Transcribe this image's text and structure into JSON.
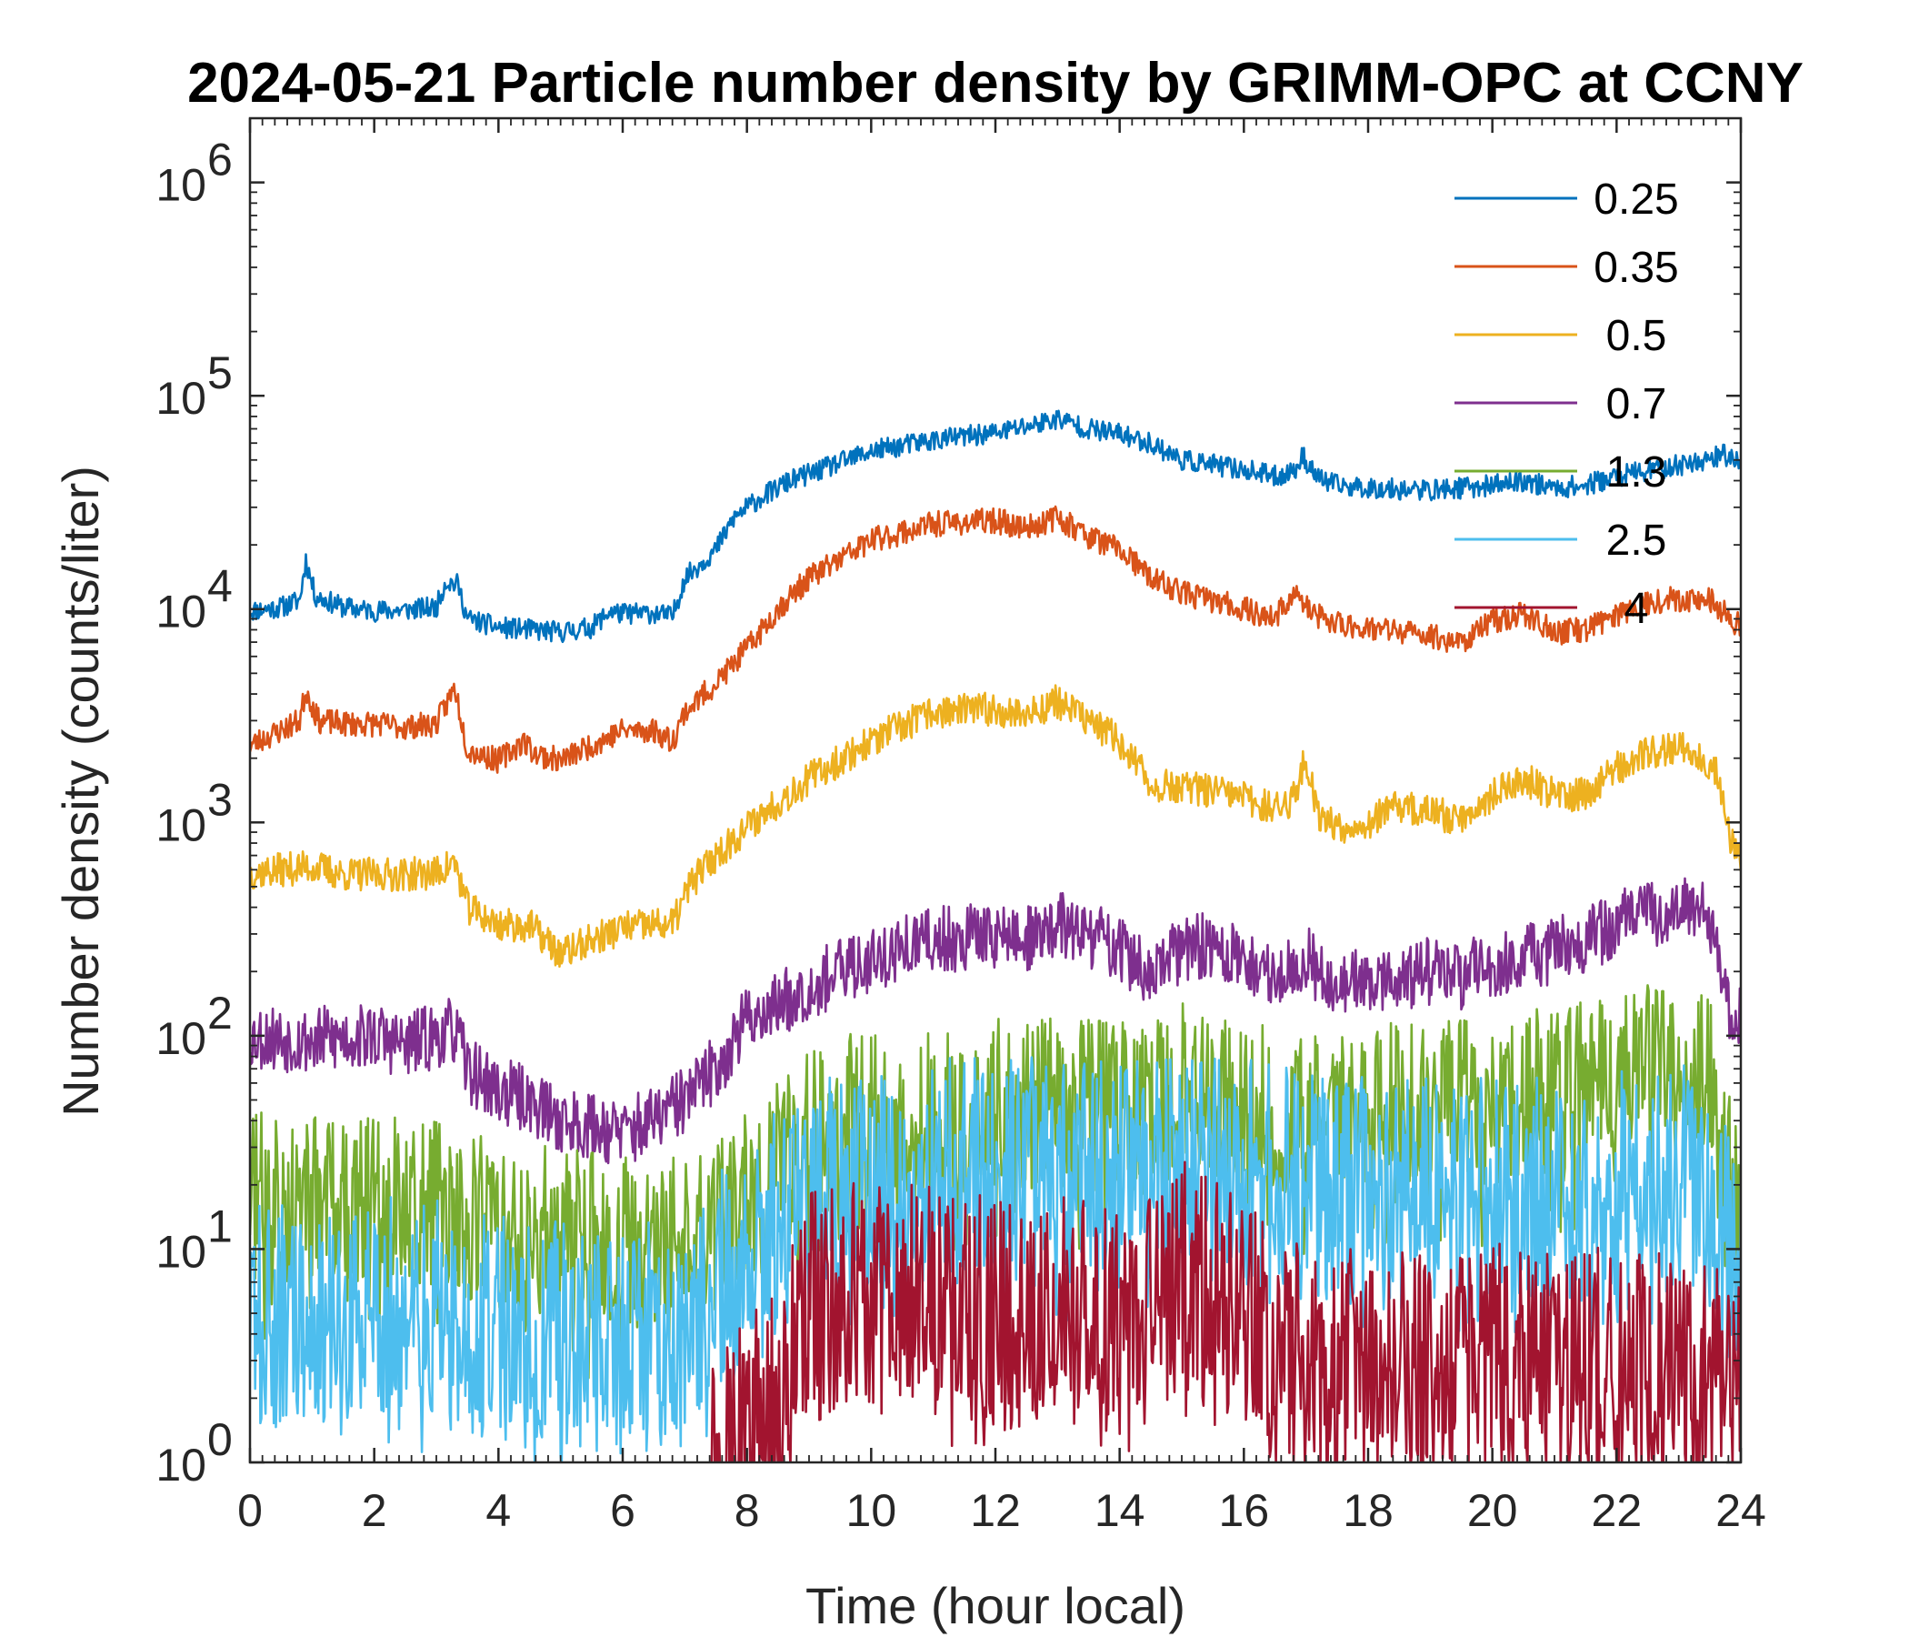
{
  "chart_data": {
    "type": "line",
    "title": "2024-05-21 Particle number density by GRIMM-OPC at CCNY",
    "xlabel": "Time (hour local)",
    "ylabel": "Number density (counts/liter)",
    "xlim": [
      0,
      24
    ],
    "ylim": [
      1,
      2000000
    ],
    "yscale": "log",
    "xticks": [
      0,
      2,
      4,
      6,
      8,
      10,
      12,
      14,
      16,
      18,
      20,
      22,
      24
    ],
    "yticks": [
      {
        "value": 1,
        "base": "10",
        "exp": "0"
      },
      {
        "value": 10,
        "base": "10",
        "exp": "1"
      },
      {
        "value": 100,
        "base": "10",
        "exp": "2"
      },
      {
        "value": 1000,
        "base": "10",
        "exp": "3"
      },
      {
        "value": 10000,
        "base": "10",
        "exp": "4"
      },
      {
        "value": 100000,
        "base": "10",
        "exp": "5"
      },
      {
        "value": 1000000,
        "base": "10",
        "exp": "6"
      }
    ],
    "grid": false,
    "legend_position": "top-right",
    "series": [
      {
        "name": "0.25",
        "color": "#0072BD",
        "noise": 0.05,
        "seed": 11,
        "points": [
          [
            0,
            9800
          ],
          [
            0.5,
            10200
          ],
          [
            0.8,
            11000
          ],
          [
            0.9,
            17000
          ],
          [
            1.05,
            11500
          ],
          [
            1.5,
            10200
          ],
          [
            2,
            9800
          ],
          [
            2.5,
            9900
          ],
          [
            3,
            10200
          ],
          [
            3.15,
            13500
          ],
          [
            3.35,
            13000
          ],
          [
            3.5,
            9000
          ],
          [
            4,
            8200
          ],
          [
            4.5,
            8000
          ],
          [
            5,
            7800
          ],
          [
            5.5,
            8200
          ],
          [
            5.8,
            9800
          ],
          [
            6,
            9500
          ],
          [
            6.5,
            9600
          ],
          [
            6.8,
            9200
          ],
          [
            7,
            14000
          ],
          [
            7.5,
            19000
          ],
          [
            7.8,
            27000
          ],
          [
            8.2,
            33000
          ],
          [
            8.7,
            40000
          ],
          [
            9.2,
            45000
          ],
          [
            10,
            55000
          ],
          [
            11,
            62000
          ],
          [
            12,
            67000
          ],
          [
            12.5,
            72000
          ],
          [
            13,
            78000
          ],
          [
            13.5,
            70000
          ],
          [
            14,
            66000
          ],
          [
            14.5,
            60000
          ],
          [
            15,
            50000
          ],
          [
            16,
            45000
          ],
          [
            16.5,
            42000
          ],
          [
            16.8,
            44000
          ],
          [
            16.95,
            52000
          ],
          [
            17.2,
            41000
          ],
          [
            17.5,
            38000
          ],
          [
            18,
            37000
          ],
          [
            19,
            36000
          ],
          [
            20,
            38000
          ],
          [
            20.5,
            40000
          ],
          [
            21,
            37000
          ],
          [
            21.5,
            38000
          ],
          [
            22,
            42000
          ],
          [
            22.8,
            46000
          ],
          [
            23.4,
            50000
          ],
          [
            23.7,
            53000
          ],
          [
            24,
            50000
          ]
        ]
      },
      {
        "name": "0.35",
        "color": "#D95319",
        "noise": 0.06,
        "seed": 23,
        "points": [
          [
            0,
            2300
          ],
          [
            0.5,
            2700
          ],
          [
            0.8,
            3000
          ],
          [
            0.9,
            4200
          ],
          [
            1.1,
            3000
          ],
          [
            1.5,
            2900
          ],
          [
            2,
            2900
          ],
          [
            2.5,
            2800
          ],
          [
            3,
            2900
          ],
          [
            3.3,
            4300
          ],
          [
            3.5,
            2200
          ],
          [
            4,
            1950
          ],
          [
            4.4,
            2400
          ],
          [
            4.6,
            2100
          ],
          [
            5,
            1950
          ],
          [
            5.5,
            2300
          ],
          [
            6,
            2700
          ],
          [
            6.5,
            2700
          ],
          [
            6.8,
            2400
          ],
          [
            7,
            3300
          ],
          [
            7.5,
            4500
          ],
          [
            8,
            6500
          ],
          [
            8.5,
            10000
          ],
          [
            9,
            14000
          ],
          [
            10,
            21000
          ],
          [
            11,
            25000
          ],
          [
            12,
            26000
          ],
          [
            12.5,
            24000
          ],
          [
            13,
            27000
          ],
          [
            13.5,
            22000
          ],
          [
            14,
            19000
          ],
          [
            14.5,
            14000
          ],
          [
            15,
            12000
          ],
          [
            16,
            10000
          ],
          [
            16.5,
            9000
          ],
          [
            16.8,
            12000
          ],
          [
            17.1,
            9500
          ],
          [
            17.5,
            8500
          ],
          [
            18,
            8200
          ],
          [
            19,
            7500
          ],
          [
            19.5,
            7000
          ],
          [
            20,
            8800
          ],
          [
            20.5,
            9500
          ],
          [
            21,
            7800
          ],
          [
            21.5,
            8000
          ],
          [
            22,
            9500
          ],
          [
            22.5,
            10800
          ],
          [
            23,
            11200
          ],
          [
            23.5,
            11000
          ],
          [
            24,
            8200
          ]
        ]
      },
      {
        "name": "0.5",
        "color": "#EDB120",
        "noise": 0.08,
        "seed": 37,
        "points": [
          [
            0,
            580
          ],
          [
            0.5,
            600
          ],
          [
            1,
            620
          ],
          [
            1.5,
            570
          ],
          [
            2,
            570
          ],
          [
            2.5,
            570
          ],
          [
            3,
            580
          ],
          [
            3.3,
            650
          ],
          [
            3.5,
            400
          ],
          [
            4,
            330
          ],
          [
            4.5,
            330
          ],
          [
            5,
            240
          ],
          [
            5.5,
            280
          ],
          [
            6,
            320
          ],
          [
            6.5,
            330
          ],
          [
            6.8,
            330
          ],
          [
            7.1,
            520
          ],
          [
            7.5,
            700
          ],
          [
            8,
            950
          ],
          [
            8.5,
            1250
          ],
          [
            9,
            1600
          ],
          [
            10,
            2400
          ],
          [
            11,
            3300
          ],
          [
            12,
            3400
          ],
          [
            12.5,
            3200
          ],
          [
            13,
            3700
          ],
          [
            13.5,
            3000
          ],
          [
            14,
            2400
          ],
          [
            14.5,
            1500
          ],
          [
            15,
            1450
          ],
          [
            15.5,
            1400
          ],
          [
            16,
            1300
          ],
          [
            16.5,
            1150
          ],
          [
            16.8,
            1300
          ],
          [
            17,
            2000
          ],
          [
            17.2,
            1100
          ],
          [
            17.5,
            950
          ],
          [
            18,
            1000
          ],
          [
            18.5,
            1200
          ],
          [
            19,
            1100
          ],
          [
            19.5,
            1050
          ],
          [
            20,
            1350
          ],
          [
            20.5,
            1600
          ],
          [
            21,
            1350
          ],
          [
            21.5,
            1350
          ],
          [
            22,
            1800
          ],
          [
            22.5,
            2100
          ],
          [
            23,
            2300
          ],
          [
            23.3,
            2100
          ],
          [
            23.6,
            1800
          ],
          [
            23.8,
            900
          ],
          [
            24,
            700
          ]
        ]
      },
      {
        "name": "0.7",
        "color": "#7E2F8E",
        "noise": 0.16,
        "seed": 53,
        "points": [
          [
            0,
            100
          ],
          [
            1,
            95
          ],
          [
            2,
            100
          ],
          [
            2.5,
            90
          ],
          [
            3,
            100
          ],
          [
            3.3,
            105
          ],
          [
            3.5,
            70
          ],
          [
            4,
            55
          ],
          [
            4.5,
            50
          ],
          [
            5,
            40
          ],
          [
            5.5,
            38
          ],
          [
            6,
            35
          ],
          [
            6.5,
            40
          ],
          [
            7,
            50
          ],
          [
            7.5,
            70
          ],
          [
            8,
            120
          ],
          [
            8.5,
            140
          ],
          [
            9,
            170
          ],
          [
            10,
            230
          ],
          [
            11,
            280
          ],
          [
            12,
            300
          ],
          [
            12.5,
            280
          ],
          [
            13,
            330
          ],
          [
            13.5,
            300
          ],
          [
            14,
            260
          ],
          [
            14.5,
            180
          ],
          [
            15,
            260
          ],
          [
            15.5,
            260
          ],
          [
            16,
            220
          ],
          [
            16.5,
            190
          ],
          [
            17,
            230
          ],
          [
            17.5,
            170
          ],
          [
            18,
            180
          ],
          [
            19,
            200
          ],
          [
            19.5,
            190
          ],
          [
            20,
            220
          ],
          [
            20.5,
            230
          ],
          [
            21,
            250
          ],
          [
            21.5,
            280
          ],
          [
            22,
            330
          ],
          [
            22.5,
            370
          ],
          [
            23,
            400
          ],
          [
            23.5,
            350
          ],
          [
            23.7,
            200
          ],
          [
            23.85,
            110
          ],
          [
            24,
            120
          ]
        ]
      },
      {
        "name": "1.3",
        "color": "#77AC30",
        "noise": 0.4,
        "seed": 71,
        "points": [
          [
            0,
            18
          ],
          [
            1,
            17
          ],
          [
            2,
            18
          ],
          [
            3,
            16
          ],
          [
            3.5,
            14
          ],
          [
            4,
            13
          ],
          [
            5,
            12
          ],
          [
            6,
            11
          ],
          [
            6.5,
            11
          ],
          [
            7,
            11
          ],
          [
            7.5,
            13
          ],
          [
            8,
            18
          ],
          [
            8.5,
            24
          ],
          [
            9,
            35
          ],
          [
            9.5,
            40
          ],
          [
            10,
            42
          ],
          [
            11,
            45
          ],
          [
            12,
            48
          ],
          [
            13,
            48
          ],
          [
            14,
            47
          ],
          [
            14.5,
            45
          ],
          [
            15,
            58
          ],
          [
            15.5,
            50
          ],
          [
            16,
            48
          ],
          [
            16.5,
            45
          ],
          [
            17,
            42
          ],
          [
            17.5,
            40
          ],
          [
            18,
            45
          ],
          [
            19,
            48
          ],
          [
            20,
            50
          ],
          [
            21,
            55
          ],
          [
            21.5,
            60
          ],
          [
            22,
            70
          ],
          [
            22.5,
            80
          ],
          [
            23,
            80
          ],
          [
            23.5,
            70
          ],
          [
            23.7,
            35
          ],
          [
            24,
            20
          ]
        ]
      },
      {
        "name": "2.5",
        "color": "#4DBEEE",
        "noise": 0.55,
        "seed": 89,
        "points": [
          [
            0,
            5
          ],
          [
            1,
            5
          ],
          [
            2,
            5
          ],
          [
            3,
            5
          ],
          [
            4,
            4
          ],
          [
            5,
            4
          ],
          [
            6,
            4
          ],
          [
            7,
            4
          ],
          [
            7.5,
            8
          ],
          [
            8,
            10
          ],
          [
            8.5,
            14
          ],
          [
            9,
            18
          ],
          [
            10,
            22
          ],
          [
            11,
            23
          ],
          [
            12,
            24
          ],
          [
            13,
            23
          ],
          [
            14,
            22
          ],
          [
            15,
            26
          ],
          [
            16,
            22
          ],
          [
            17,
            20
          ],
          [
            18,
            18
          ],
          [
            19,
            18
          ],
          [
            20,
            18
          ],
          [
            21,
            18
          ],
          [
            22,
            20
          ],
          [
            22.5,
            22
          ],
          [
            23,
            22
          ],
          [
            23.5,
            18
          ],
          [
            23.8,
            10
          ],
          [
            24,
            8
          ]
        ]
      },
      {
        "name": "4",
        "color": "#A2142F",
        "noise": 0.55,
        "seed": 97,
        "points": [
          [
            7.4,
            1.1
          ],
          [
            7.8,
            1.3
          ],
          [
            8.2,
            1.5
          ],
          [
            8.6,
            2
          ],
          [
            8.9,
            5
          ],
          [
            9.5,
            6
          ],
          [
            10,
            6
          ],
          [
            11,
            5.5
          ],
          [
            12,
            5
          ],
          [
            13,
            5
          ],
          [
            14,
            4.5
          ],
          [
            14.5,
            5
          ],
          [
            15,
            7.5
          ],
          [
            15.5,
            6
          ],
          [
            16,
            5
          ],
          [
            16.5,
            3.5
          ],
          [
            17,
            3
          ],
          [
            18,
            3
          ],
          [
            19,
            3
          ],
          [
            20,
            3
          ],
          [
            21,
            3
          ],
          [
            22,
            3
          ],
          [
            23,
            3
          ],
          [
            23.5,
            2.5
          ],
          [
            24,
            2
          ]
        ]
      }
    ]
  }
}
